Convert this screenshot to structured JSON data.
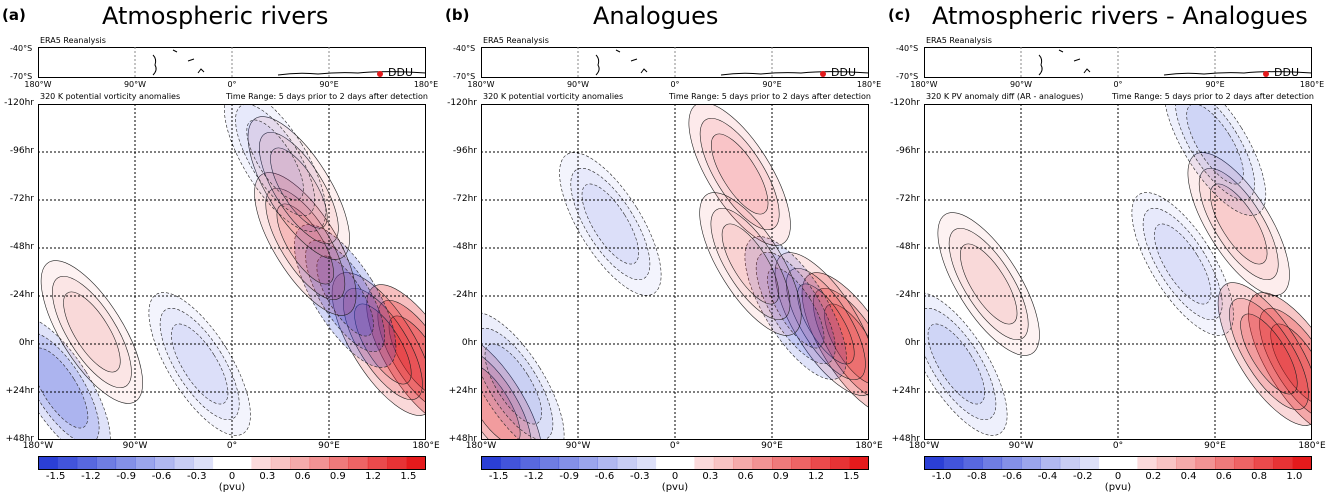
{
  "panels": [
    {
      "label": "(a)",
      "title": "Atmospheric rivers",
      "map_caption": "ERA5 Reanalysis",
      "station": "DDU",
      "map_lat_ticks": [
        "-40°S",
        "-70°S"
      ],
      "subtitle_left": "320 K potential vorticity anomalies",
      "subtitle_right": "Time Range: 5 days prior to 2 days after detection",
      "colorbar_ticks": [
        "-1.5",
        "-1.2",
        "-0.9",
        "-0.6",
        "-0.3",
        "0",
        "0.3",
        "0.6",
        "0.9",
        "1.2",
        "1.5"
      ],
      "colorbar_label": "(pvu)"
    },
    {
      "label": "(b)",
      "title": "Analogues",
      "map_caption": "ERA5 Reanalysis",
      "station": "DDU",
      "map_lat_ticks": [
        "-40°S",
        "-70°S"
      ],
      "subtitle_left": "320 K potential vorticity anomalies",
      "subtitle_right": "Time Range: 5 days prior to 2 days after detection",
      "colorbar_ticks": [
        "-1.5",
        "-1.2",
        "-0.9",
        "-0.6",
        "-0.3",
        "0",
        "0.3",
        "0.6",
        "0.9",
        "1.2",
        "1.5"
      ],
      "colorbar_label": "(pvu)"
    },
    {
      "label": "(c)",
      "title": "Atmospheric rivers - Analogues",
      "map_caption": "ERA5 Reanalysis",
      "station": "DDU",
      "map_lat_ticks": [
        "-40°S",
        "-70°S"
      ],
      "subtitle_left": "320 K PV anomaly diff (AR - analogues)",
      "subtitle_right": "Time Range: 5 days prior to 2 days after detection",
      "colorbar_ticks": [
        "-1.0",
        "-0.8",
        "-0.6",
        "-0.4",
        "-0.2",
        "0",
        "0.2",
        "0.4",
        "0.6",
        "0.8",
        "1.0"
      ],
      "colorbar_label": "(pvu)"
    }
  ],
  "colors": {
    "positive": "#e41a1c",
    "negative": "#2b3fd6",
    "station_marker": "#e41a1c"
  },
  "chart_data": [
    {
      "type": "heatmap",
      "title": "Atmospheric rivers",
      "subtitle": "320 K potential vorticity anomalies",
      "x_ticks": [
        "180°W",
        "90°W",
        "0°",
        "90°E",
        "180°E"
      ],
      "y_ticks": [
        "-120hr",
        "-96hr",
        "-72hr",
        "-48hr",
        "-24hr",
        "0hr",
        "+24hr",
        "+48hr"
      ],
      "xlim": [
        -180,
        180
      ],
      "ylim": [
        -120,
        48
      ],
      "colorbar_range": [
        -1.5,
        1.5
      ],
      "grid": true,
      "features": [
        {
          "lon": 172,
          "hr": 6,
          "value": 1.5
        },
        {
          "lon": 140,
          "hr": 0,
          "value": 0.9
        },
        {
          "lon": 105,
          "hr": -24,
          "value": -1.1
        },
        {
          "lon": 68,
          "hr": -50,
          "value": 0.6
        },
        {
          "lon": 62,
          "hr": -78,
          "value": 0.4
        },
        {
          "lon": 40,
          "hr": -92,
          "value": -0.3
        },
        {
          "lon": -160,
          "hr": 22,
          "value": -0.8
        },
        {
          "lon": -130,
          "hr": -6,
          "value": 0.3
        },
        {
          "lon": -30,
          "hr": 10,
          "value": -0.3
        }
      ]
    },
    {
      "type": "heatmap",
      "title": "Analogues",
      "subtitle": "320 K potential vorticity anomalies",
      "x_ticks": [
        "180°W",
        "90°W",
        "0°",
        "90°E",
        "180°E"
      ],
      "y_ticks": [
        "-120hr",
        "-96hr",
        "-72hr",
        "-48hr",
        "-24hr",
        "0hr",
        "+24hr",
        "+48hr"
      ],
      "xlim": [
        -180,
        180
      ],
      "ylim": [
        -120,
        48
      ],
      "colorbar_range": [
        -1.5,
        1.5
      ],
      "grid": true,
      "features": [
        {
          "lon": 165,
          "hr": 0,
          "value": 1.2
        },
        {
          "lon": 140,
          "hr": -10,
          "value": 0.6
        },
        {
          "lon": 112,
          "hr": -18,
          "value": -0.8
        },
        {
          "lon": 60,
          "hr": -85,
          "value": 0.5
        },
        {
          "lon": 70,
          "hr": -40,
          "value": 0.4
        },
        {
          "lon": -170,
          "hr": 30,
          "value": 0.9
        },
        {
          "lon": -150,
          "hr": 20,
          "value": -0.5
        },
        {
          "lon": -60,
          "hr": -60,
          "value": -0.3
        }
      ]
    },
    {
      "type": "heatmap",
      "title": "Atmospheric rivers - Analogues",
      "subtitle": "320 K PV anomaly diff (AR - analogues)",
      "x_ticks": [
        "180°W",
        "90°W",
        "0°",
        "90°E",
        "180°E"
      ],
      "y_ticks": [
        "-120hr",
        "-96hr",
        "-72hr",
        "-48hr",
        "-24hr",
        "0hr",
        "+24hr",
        "+48hr"
      ],
      "xlim": [
        -180,
        180
      ],
      "ylim": [
        -120,
        48
      ],
      "colorbar_range": [
        -1.0,
        1.0
      ],
      "grid": true,
      "features": [
        {
          "lon": 168,
          "hr": 10,
          "value": 0.9
        },
        {
          "lon": 140,
          "hr": 5,
          "value": 0.6
        },
        {
          "lon": 112,
          "hr": -60,
          "value": 0.3
        },
        {
          "lon": 90,
          "hr": -100,
          "value": -0.3
        },
        {
          "lon": -150,
          "hr": 10,
          "value": -0.3
        },
        {
          "lon": -120,
          "hr": -30,
          "value": 0.2
        },
        {
          "lon": 60,
          "hr": -40,
          "value": -0.2
        }
      ]
    }
  ]
}
